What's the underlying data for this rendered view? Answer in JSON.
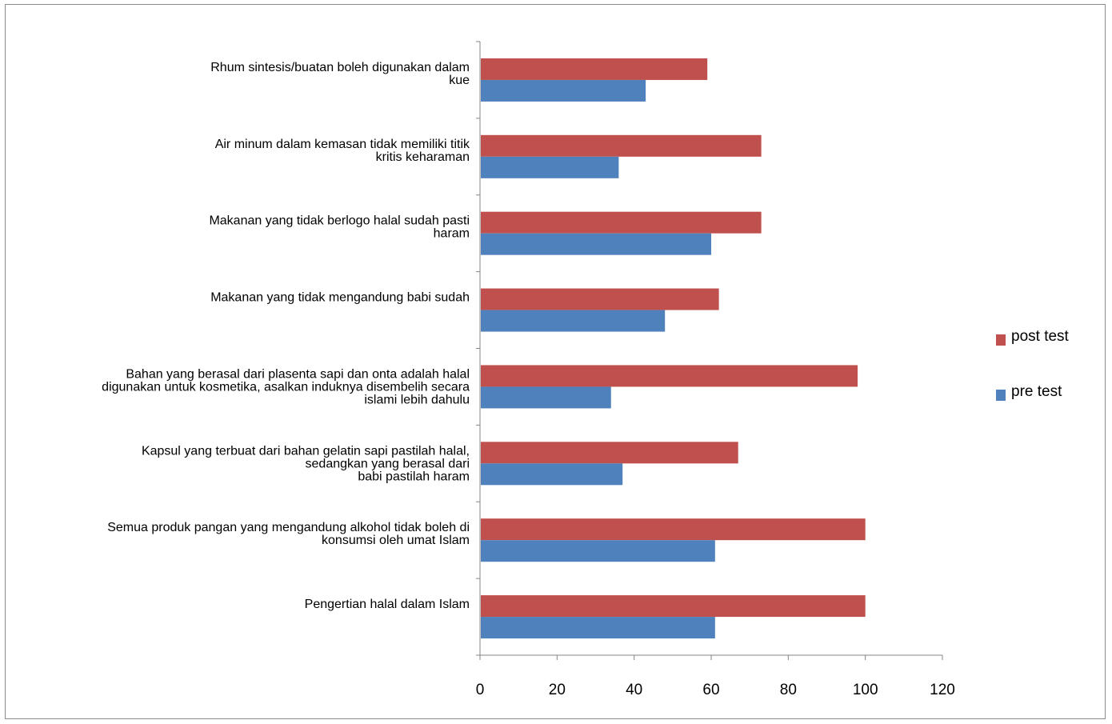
{
  "chart_data": {
    "type": "bar",
    "orientation": "horizontal",
    "categories": [
      "Pengertian halal dalam Islam",
      "Semua produk pangan yang mengandung alkohol tidak boleh di konsumsi oleh umat Islam",
      "Kapsul yang terbuat dari bahan gelatin sapi pastilah halal, sedangkan yang berasal dari babi pastilah haram",
      "Bahan yang berasal dari plasenta sapi dan onta adalah halal digunakan untuk kosmetika, asalkan induknya disembelih secara islami lebih dahulu",
      "Makanan yang tidak mengandung babi sudah",
      "Makanan yang tidak berlogo halal sudah pasti haram",
      "Air minum dalam kemasan tidak memiliki titik kritis keharaman",
      "Rhum sintesis/buatan boleh digunakan dalam kue"
    ],
    "category_lines": [
      [
        "Pengertian halal dalam Islam"
      ],
      [
        "Semua produk pangan yang mengandung alkohol tidak boleh di",
        "konsumsi oleh umat Islam"
      ],
      [
        "Kapsul yang terbuat dari bahan gelatin sapi pastilah halal,",
        "sedangkan yang berasal dari",
        "babi pastilah haram"
      ],
      [
        "Bahan yang berasal dari plasenta sapi dan onta adalah halal",
        "digunakan untuk kosmetika, asalkan induknya disembelih secara",
        "islami lebih dahulu"
      ],
      [
        "Makanan yang tidak mengandung babi sudah"
      ],
      [
        "Makanan yang tidak berlogo halal sudah pasti",
        "haram"
      ],
      [
        "Air minum dalam kemasan tidak memiliki titik",
        "kritis keharaman"
      ],
      [
        "Rhum sintesis/buatan boleh digunakan dalam",
        "kue"
      ]
    ],
    "series": [
      {
        "name": "post test",
        "color": "#c0504d",
        "values": [
          100,
          100,
          67,
          98,
          62,
          73,
          73,
          59
        ]
      },
      {
        "name": "pre test",
        "color": "#4f81bd",
        "values": [
          61,
          61,
          37,
          34,
          48,
          60,
          36,
          43
        ]
      }
    ],
    "xlim": [
      0,
      120
    ],
    "xticks": [
      "0",
      "20",
      "40",
      "60",
      "80",
      "100",
      "120"
    ],
    "legend_position": "right",
    "grid": false
  }
}
